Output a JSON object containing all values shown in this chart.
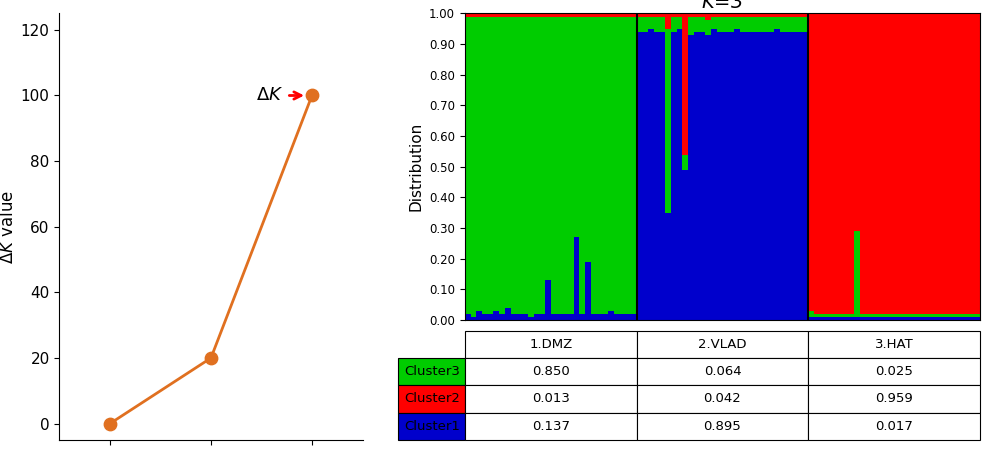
{
  "line_x": [
    1,
    2,
    3
  ],
  "line_y": [
    0,
    20,
    100
  ],
  "line_color": "#E07020",
  "marker_color": "#E07020",
  "ylim": [
    -5,
    125
  ],
  "yticks": [
    0,
    20,
    40,
    60,
    80,
    100,
    120
  ],
  "xlim": [
    0.5,
    3.5
  ],
  "xticks": [
    1,
    2,
    3
  ],
  "populations": [
    "1.DMZ",
    "2.VLAD",
    "3.HAT"
  ],
  "clusters": [
    "Cluster3",
    "Cluster2",
    "Cluster1"
  ],
  "cluster_colors": [
    "#00CC00",
    "#FF0000",
    "#0000CC"
  ],
  "cluster_means": {
    "Cluster3": [
      0.85,
      0.064,
      0.025
    ],
    "Cluster2": [
      0.013,
      0.042,
      0.959
    ],
    "Cluster1": [
      0.137,
      0.895,
      0.017
    ]
  },
  "yticks_bar": [
    0.0,
    0.1,
    0.2,
    0.3,
    0.4,
    0.5,
    0.6,
    0.7,
    0.8,
    0.9,
    1.0
  ],
  "dmz_individuals": {
    "green": [
      0.97,
      0.98,
      0.96,
      0.97,
      0.97,
      0.96,
      0.97,
      0.95,
      0.97,
      0.97,
      0.97,
      0.98,
      0.97,
      0.97,
      0.86,
      0.97,
      0.97,
      0.97,
      0.97,
      0.72,
      0.97,
      0.8,
      0.97,
      0.97,
      0.97,
      0.96,
      0.97,
      0.97,
      0.97,
      0.97
    ],
    "red": [
      0.01,
      0.01,
      0.01,
      0.01,
      0.01,
      0.01,
      0.01,
      0.01,
      0.01,
      0.01,
      0.01,
      0.01,
      0.01,
      0.01,
      0.01,
      0.01,
      0.01,
      0.01,
      0.01,
      0.01,
      0.01,
      0.01,
      0.01,
      0.01,
      0.01,
      0.01,
      0.01,
      0.01,
      0.01,
      0.01
    ],
    "blue": [
      0.02,
      0.01,
      0.03,
      0.02,
      0.02,
      0.03,
      0.02,
      0.04,
      0.02,
      0.02,
      0.02,
      0.01,
      0.02,
      0.02,
      0.13,
      0.02,
      0.02,
      0.02,
      0.02,
      0.27,
      0.02,
      0.19,
      0.02,
      0.02,
      0.02,
      0.03,
      0.02,
      0.02,
      0.02,
      0.02
    ]
  },
  "vlad_individuals": {
    "green": [
      0.05,
      0.05,
      0.04,
      0.05,
      0.05,
      0.6,
      0.05,
      0.04,
      0.05,
      0.06,
      0.05,
      0.05,
      0.05,
      0.04,
      0.05,
      0.05,
      0.05,
      0.04,
      0.05,
      0.05,
      0.05,
      0.05,
      0.05,
      0.05,
      0.04,
      0.05,
      0.05,
      0.05,
      0.05,
      0.05
    ],
    "red": [
      0.01,
      0.01,
      0.01,
      0.01,
      0.01,
      0.05,
      0.01,
      0.01,
      0.5,
      0.01,
      0.01,
      0.01,
      0.02,
      0.01,
      0.01,
      0.01,
      0.01,
      0.01,
      0.01,
      0.01,
      0.01,
      0.01,
      0.01,
      0.01,
      0.01,
      0.01,
      0.01,
      0.01,
      0.01,
      0.01
    ],
    "blue": [
      0.94,
      0.94,
      0.95,
      0.94,
      0.94,
      0.35,
      0.94,
      0.95,
      0.49,
      0.93,
      0.94,
      0.94,
      0.93,
      0.95,
      0.94,
      0.94,
      0.94,
      0.95,
      0.94,
      0.94,
      0.94,
      0.94,
      0.94,
      0.94,
      0.95,
      0.94,
      0.94,
      0.94,
      0.94,
      0.94
    ]
  },
  "hat_individuals": {
    "green": [
      0.02,
      0.01,
      0.01,
      0.01,
      0.01,
      0.01,
      0.01,
      0.01,
      0.28,
      0.01,
      0.01,
      0.01,
      0.01,
      0.01,
      0.01,
      0.01,
      0.01,
      0.01,
      0.01,
      0.01,
      0.01,
      0.01,
      0.01,
      0.01,
      0.01,
      0.01,
      0.01,
      0.01,
      0.01,
      0.01
    ],
    "red": [
      0.97,
      0.98,
      0.98,
      0.98,
      0.98,
      0.98,
      0.98,
      0.98,
      0.71,
      0.98,
      0.98,
      0.98,
      0.98,
      0.98,
      0.98,
      0.98,
      0.98,
      0.98,
      0.98,
      0.98,
      0.98,
      0.98,
      0.98,
      0.98,
      0.98,
      0.98,
      0.98,
      0.98,
      0.98,
      0.98
    ],
    "blue": [
      0.01,
      0.01,
      0.01,
      0.01,
      0.01,
      0.01,
      0.01,
      0.01,
      0.01,
      0.01,
      0.01,
      0.01,
      0.01,
      0.01,
      0.01,
      0.01,
      0.01,
      0.01,
      0.01,
      0.01,
      0.01,
      0.01,
      0.01,
      0.01,
      0.01,
      0.01,
      0.01,
      0.01,
      0.01,
      0.01
    ]
  },
  "bg_color": "#FFFFFF"
}
